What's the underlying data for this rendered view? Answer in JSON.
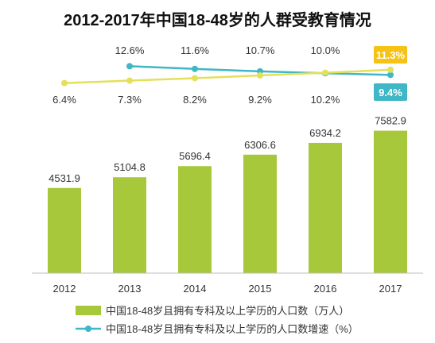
{
  "chart_data": {
    "type": "bar+line",
    "title": "2012-2017年中国18-48岁的人群受教育情况",
    "categories": [
      "2012",
      "2013",
      "2014",
      "2015",
      "2016",
      "2017"
    ],
    "bar_series": {
      "name": "中国18-48岁且拥有专科及以上学历的人口数（万人）",
      "values": [
        4531.9,
        5104.8,
        5696.4,
        6306.6,
        6934.2,
        7582.9
      ],
      "value_labels": [
        "4531.9",
        "5104.8",
        "5696.4",
        "6306.6",
        "6934.2",
        "7582.9"
      ],
      "color": "#a6c83a"
    },
    "line_series": [
      {
        "name": "中国18-48岁且拥有专科及以上学历的人口数增速（%）",
        "values": [
          12.6,
          11.6,
          10.7,
          10.0,
          9.4
        ],
        "x_start_index": 1,
        "value_labels": [
          "12.6%",
          "11.6%",
          "10.7%",
          "10.0%",
          "9.4%"
        ],
        "color": "#3fb7c6",
        "highlight_last": true,
        "highlight_color": "#3fb7c6"
      },
      {
        "name": "",
        "values": [
          6.4,
          7.3,
          8.2,
          9.2,
          10.2,
          11.3
        ],
        "x_start_index": 0,
        "value_labels": [
          "6.4%",
          "7.3%",
          "8.2%",
          "9.2%",
          "10.2%",
          "11.3%"
        ],
        "color": "#e3e05a",
        "highlight_last": true,
        "highlight_color": "#f5c216"
      }
    ],
    "legend_placement": "bottom",
    "grid": false
  },
  "colors": {
    "axis": "#bdbdbd",
    "text": "#333333"
  }
}
